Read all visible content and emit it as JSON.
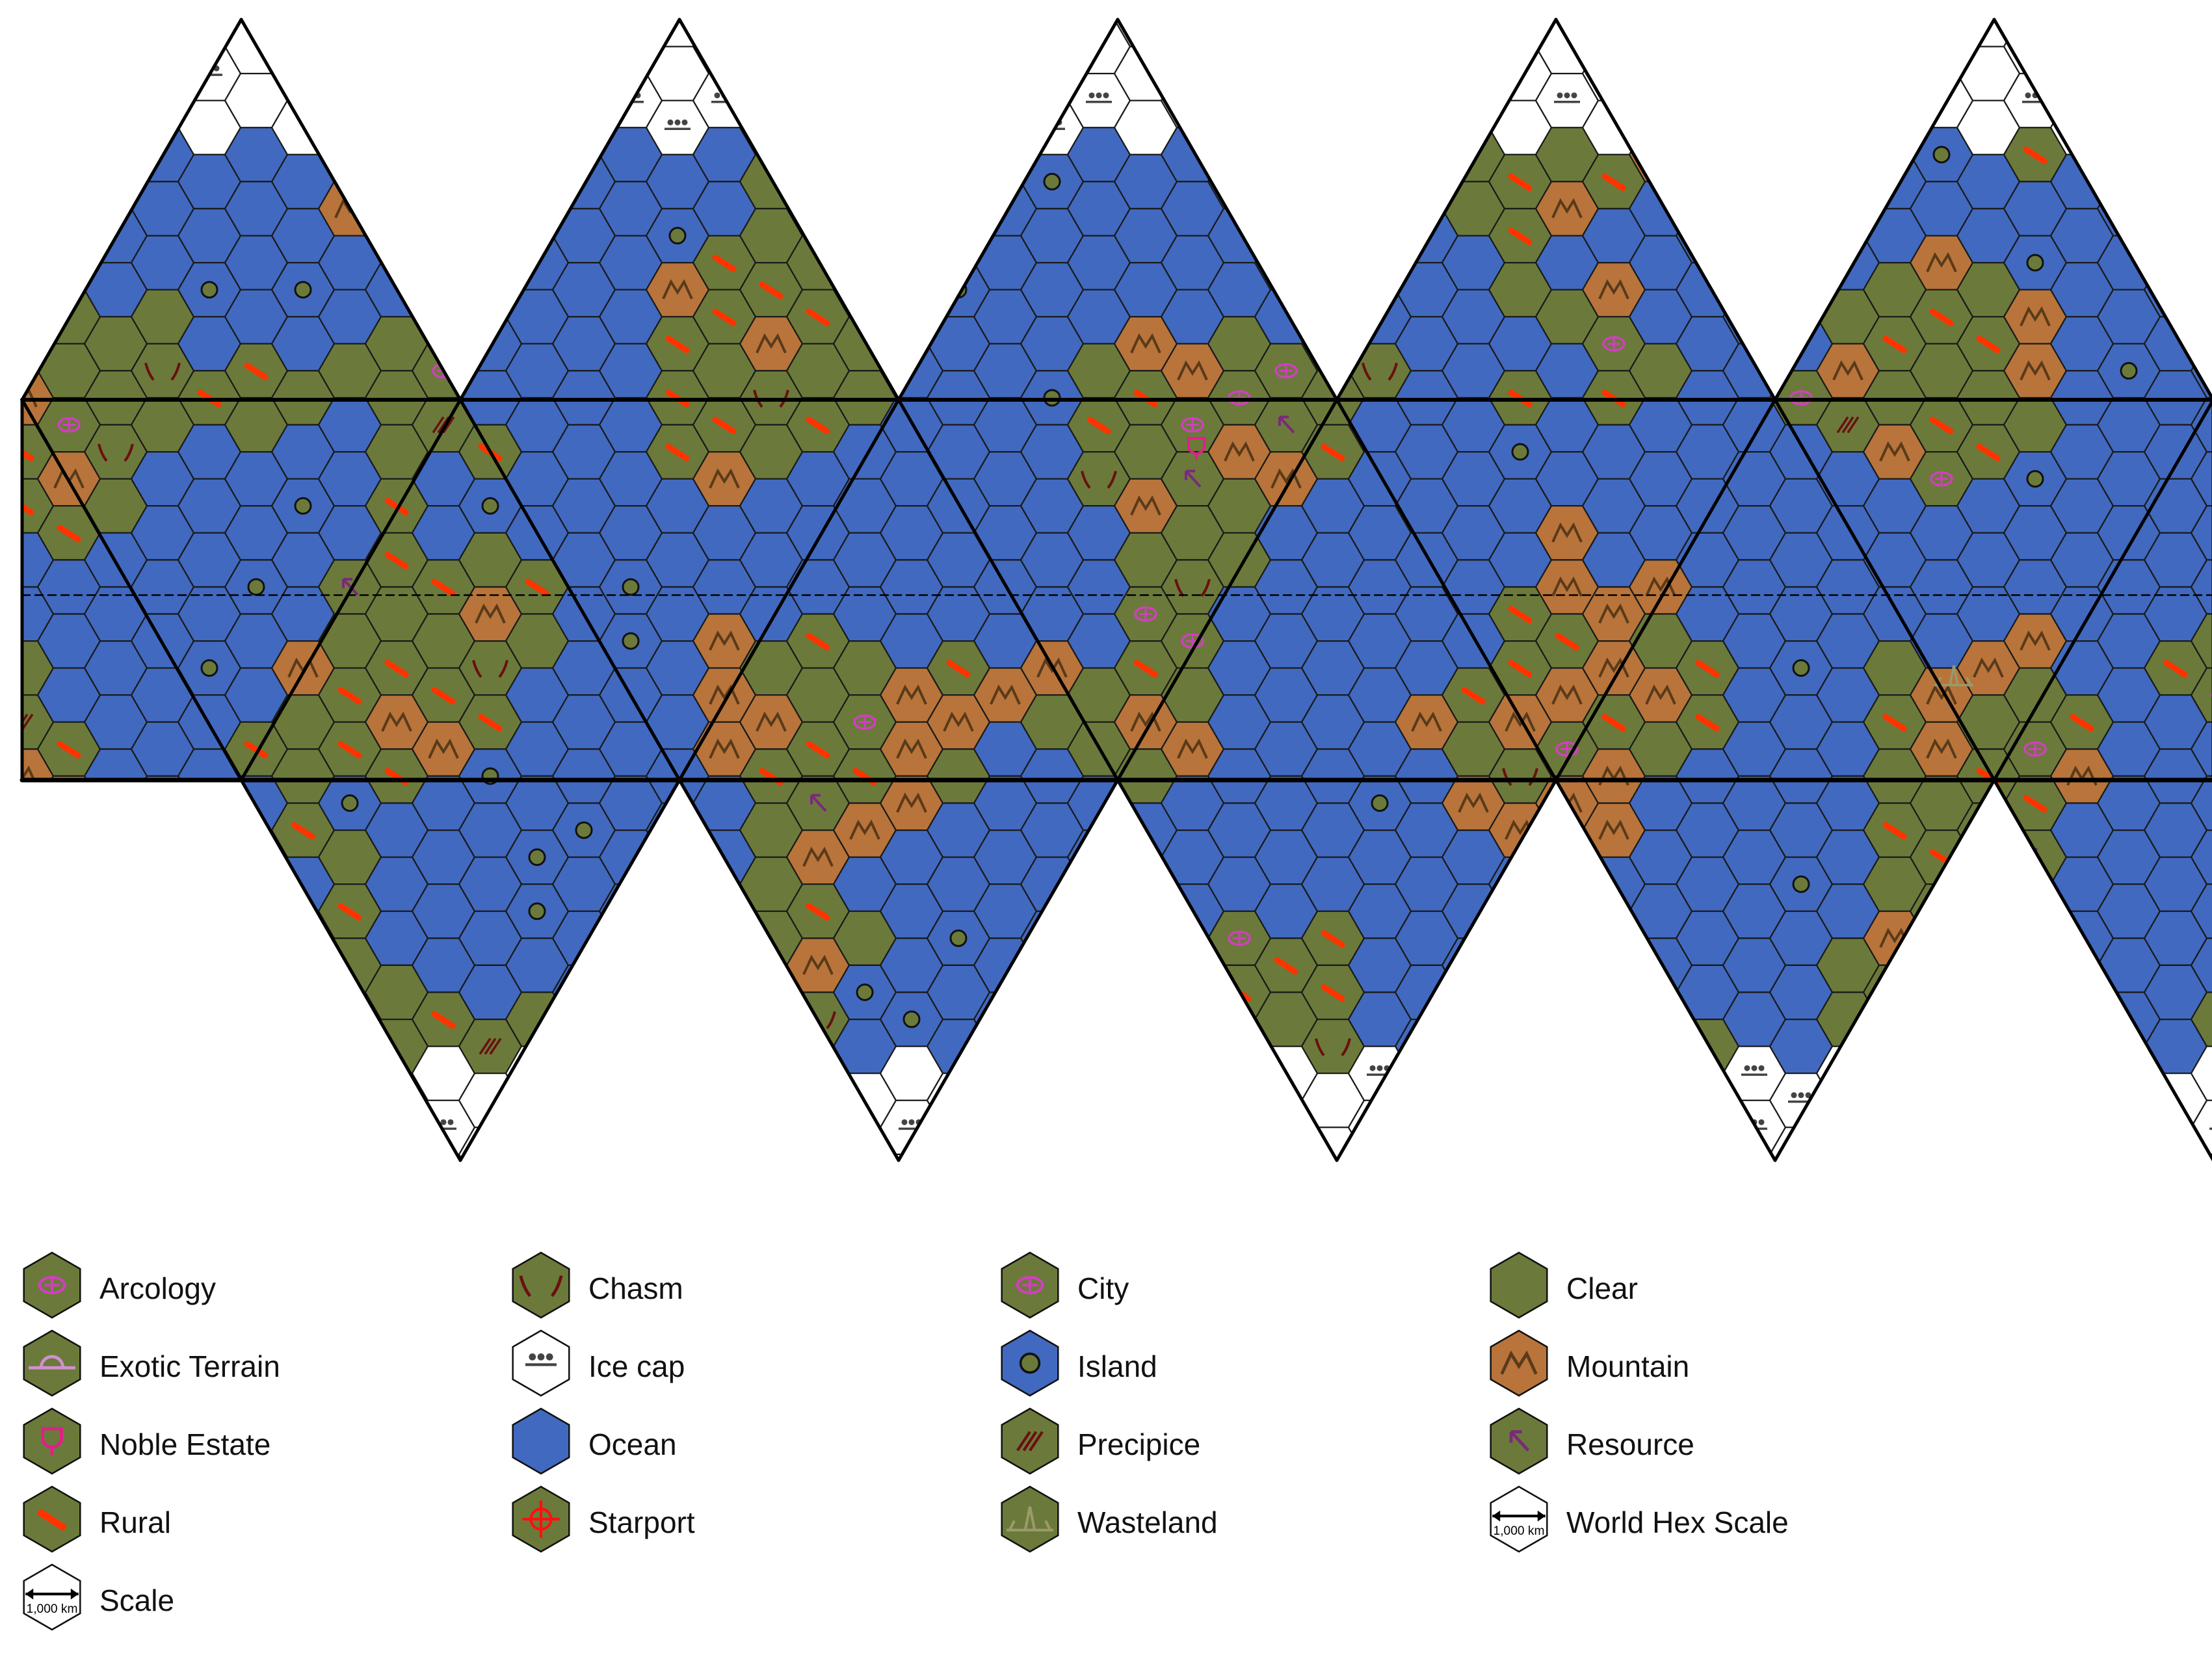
{
  "colors": {
    "ocean": "#4169c0",
    "clear": "#6b7a3a",
    "mountain": "#b8743a",
    "ice": "#ffffff",
    "hex_edge": "#1a1a1a",
    "icosa_edge": "#000000",
    "rural_mark": "#ff3300",
    "city_mark": "#d040c0",
    "resource_mark": "#7a2a7a",
    "chasm_mark": "#6a1010",
    "starport_mark": "#ff1010",
    "exotic_mark": "#d090d0",
    "noble_mark": "#e0208a",
    "wasteland_mark": "#9a9a6a"
  },
  "legend": [
    {
      "label": "Arcology",
      "fill": "clear",
      "mark": "arcology"
    },
    {
      "label": "Chasm",
      "fill": "clear",
      "mark": "chasm"
    },
    {
      "label": "City",
      "fill": "clear",
      "mark": "city"
    },
    {
      "label": "Clear",
      "fill": "clear",
      "mark": "none"
    },
    {
      "label": "Exotic Terrain",
      "fill": "clear",
      "mark": "exotic"
    },
    {
      "label": "Ice cap",
      "fill": "ice",
      "mark": "icecap"
    },
    {
      "label": "Island",
      "fill": "ocean",
      "mark": "island"
    },
    {
      "label": "Mountain",
      "fill": "mountain",
      "mark": "mountain"
    },
    {
      "label": "Noble Estate",
      "fill": "clear",
      "mark": "noble"
    },
    {
      "label": "Ocean",
      "fill": "ocean",
      "mark": "none"
    },
    {
      "label": "Precipice",
      "fill": "clear",
      "mark": "precipice"
    },
    {
      "label": "Resource",
      "fill": "clear",
      "mark": "resource"
    },
    {
      "label": "Rural",
      "fill": "clear",
      "mark": "rural"
    },
    {
      "label": "Starport",
      "fill": "clear",
      "mark": "starport"
    },
    {
      "label": "Wasteland",
      "fill": "clear",
      "mark": "wasteland"
    },
    {
      "label": "World Hex Scale",
      "fill": "ice",
      "mark": "scale"
    },
    {
      "label": "Scale",
      "fill": "ice",
      "mark": "scale"
    }
  ],
  "scale_text": "1,000 km"
}
